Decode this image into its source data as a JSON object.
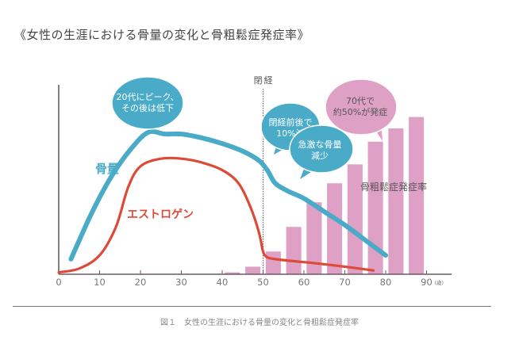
{
  "title": "《女性の生涯における骨量の変化と骨粗鬆症発症率》",
  "caption": "図１　女性の生涯における骨量の変化と骨粗鬆症発症率",
  "chart_data": {
    "type": "line",
    "title": "《女性の生涯における骨量の変化と骨粗鬆症発症率》",
    "xlabel": "(歳)",
    "ylabel": "",
    "xlim": [
      0,
      95
    ],
    "ylim": [
      0,
      100
    ],
    "x_ticks": [
      0,
      10,
      20,
      30,
      40,
      50,
      60,
      70,
      80,
      90
    ],
    "x_tick_labels": [
      "0",
      "10",
      "20",
      "30",
      "40",
      "50",
      "60",
      "70",
      "80",
      "90"
    ],
    "x_unit": "(歳)",
    "grid": false,
    "menopause": {
      "x": 51,
      "label": "閉経"
    },
    "series": [
      {
        "name": "骨量",
        "type": "line",
        "color": "#4aabc8",
        "x": [
          3,
          8,
          13,
          18,
          22,
          26,
          30,
          35,
          40,
          45,
          49,
          51,
          53,
          56,
          60,
          65,
          70,
          75,
          80
        ],
        "values": [
          8,
          32,
          52,
          67,
          75,
          74,
          74,
          72,
          69,
          65,
          60,
          55,
          48,
          44,
          40,
          33,
          26,
          18,
          10
        ]
      },
      {
        "name": "エストロゲン",
        "type": "line",
        "color": "#dd4a38",
        "x": [
          0,
          5,
          10,
          14,
          17,
          20,
          25,
          30,
          35,
          40,
          44,
          47,
          49,
          50,
          51,
          53,
          57,
          62,
          70,
          77
        ],
        "values": [
          1,
          3,
          10,
          25,
          46,
          57,
          61,
          61,
          59,
          55,
          48,
          35,
          22,
          12,
          9,
          8,
          7,
          6,
          4,
          2
        ]
      },
      {
        "name": "骨粗鬆症発症率",
        "type": "bar",
        "color": "#dea0c4",
        "x": [
          42.5,
          47.5,
          52.5,
          57.5,
          62.5,
          67.5,
          72.5,
          77.5,
          82.5,
          87.5
        ],
        "values": [
          1,
          4,
          12,
          25,
          38,
          48,
          58,
          70,
          77,
          83
        ]
      }
    ],
    "annotations": [
      {
        "text": "20代にピーク、その後は低下",
        "lines": [
          "20代にピーク、",
          "その後は低下"
        ],
        "color": "#4aabc8"
      },
      {
        "text": "閉経前後で10%減",
        "lines": [
          "閉経前後で",
          "10%減"
        ],
        "color": "#4aabc8"
      },
      {
        "text": "急激な骨量減少",
        "lines": [
          "急激な骨量",
          "減少"
        ],
        "color": "#4aabc8"
      },
      {
        "text": "70代で約50%が発症",
        "lines": [
          "70代で",
          "約50%が発症"
        ],
        "color": "#dea0c4"
      }
    ],
    "series_labels": [
      {
        "text": "骨量",
        "color": "#4aabc8"
      },
      {
        "text": "エストロゲン",
        "color": "#dd4a38"
      },
      {
        "text": "骨粗鬆症発症率",
        "color": "#555555"
      }
    ]
  }
}
